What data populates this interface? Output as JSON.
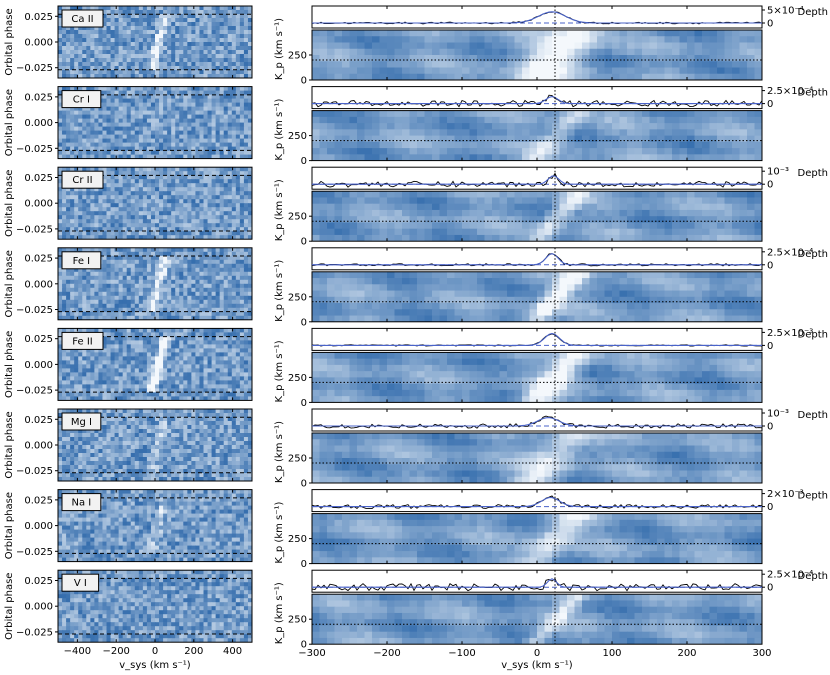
{
  "chart_data": {
    "type": "heatmap",
    "left_column": {
      "xlabel": "v_sys (km s⁻¹)",
      "ylabel": "Orbital phase",
      "xlim": [
        -500,
        500
      ],
      "ylim": [
        -0.035,
        0.035
      ],
      "xticks": [
        "−400",
        "−200",
        "0",
        "200",
        "400"
      ],
      "yticks": [
        "0.025",
        "0.000",
        "−0.025"
      ],
      "dashed_transit_lines": [
        0.027,
        -0.027
      ]
    },
    "right_column": {
      "xlabel": "v_sys (km s⁻¹)",
      "xlim": [
        -300,
        300
      ],
      "xticks": [
        "−300",
        "−200",
        "−100",
        "0",
        "100",
        "200",
        "300"
      ],
      "kp_label": "K_p (km s⁻¹)",
      "kp_ticks": [
        "0",
        "250"
      ],
      "depth_label": "Depth",
      "vsys_marker": 24,
      "kp_marker": 200
    },
    "species": [
      {
        "name": "Ca II",
        "depth_ticks": [
          "5×10⁻⁴",
          "0"
        ],
        "peak_vsys": 20,
        "peak_height": 0.8,
        "peak_width": 18,
        "noise": 0.04,
        "kp_phase": 0.03,
        "trail_strength": 0.6
      },
      {
        "name": "Cr I",
        "depth_ticks": [
          "2.5×10⁻⁴",
          "0"
        ],
        "peak_vsys": 20,
        "peak_height": 0.5,
        "peak_width": 8,
        "noise": 0.14,
        "kp_phase": 0.6,
        "trail_strength": 0.0
      },
      {
        "name": "Cr II",
        "depth_ticks": [
          "10⁻³",
          "0"
        ],
        "peak_vsys": 22,
        "peak_height": 0.6,
        "peak_width": 7,
        "noise": 0.13,
        "kp_phase": 1.2,
        "trail_strength": 0.0
      },
      {
        "name": "Fe I",
        "depth_ticks": [
          "2.5×10⁻⁴",
          "0"
        ],
        "peak_vsys": 20,
        "peak_height": 0.8,
        "peak_width": 8,
        "noise": 0.05,
        "kp_phase": 1.8,
        "trail_strength": 0.55
      },
      {
        "name": "Fe II",
        "depth_ticks": [
          "2.5×10⁻³",
          "0"
        ],
        "peak_vsys": 20,
        "peak_height": 0.85,
        "peak_width": 10,
        "noise": 0.03,
        "kp_phase": 2.4,
        "trail_strength": 0.8
      },
      {
        "name": "Mg I",
        "depth_ticks": [
          "10⁻³",
          "0"
        ],
        "peak_vsys": 15,
        "peak_height": 0.6,
        "peak_width": 14,
        "noise": 0.1,
        "kp_phase": 3.0,
        "trail_strength": 0.35
      },
      {
        "name": "Na I",
        "depth_ticks": [
          "2×10⁻³",
          "0"
        ],
        "peak_vsys": 18,
        "peak_height": 0.65,
        "peak_width": 12,
        "noise": 0.09,
        "kp_phase": 3.6,
        "trail_strength": 0.3
      },
      {
        "name": "V I",
        "depth_ticks": [
          "2.5×10⁻⁴",
          "0"
        ],
        "peak_vsys": 20,
        "peak_height": 0.6,
        "peak_width": 6,
        "noise": 0.16,
        "kp_phase": 4.2,
        "trail_strength": 0.0
      }
    ],
    "colors": {
      "model_line": "#4a63c9",
      "data_line": "#000000",
      "map_dark": "#0b4f9c",
      "map_light": "#f4f8fc"
    }
  }
}
